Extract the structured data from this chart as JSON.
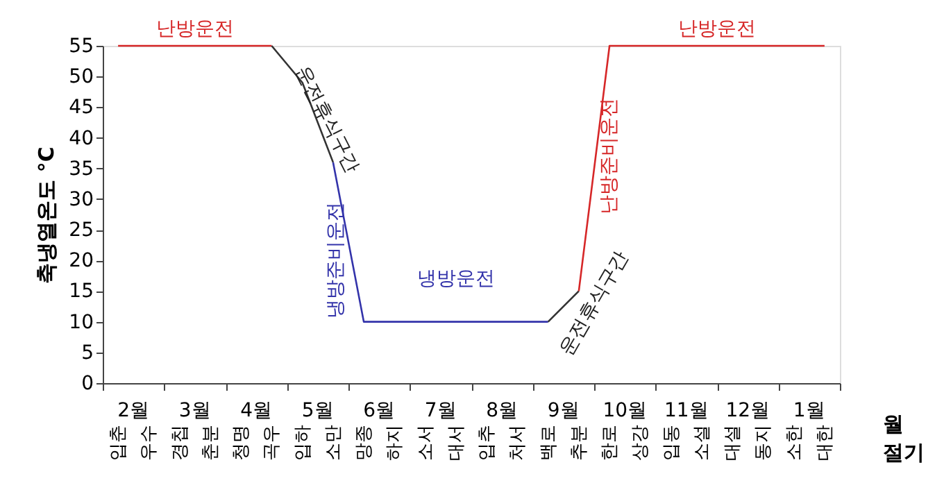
{
  "chart_data": {
    "type": "line",
    "ylabel": "축냉열온도 °C",
    "xlabel": "월",
    "ylim": [
      0,
      55
    ],
    "yticks": [
      0,
      5,
      10,
      15,
      20,
      25,
      30,
      35,
      40,
      45,
      50,
      55
    ],
    "categories": [
      "입춘",
      "우수",
      "경칩",
      "춘분",
      "청명",
      "곡우",
      "입하",
      "소만",
      "망종",
      "하지",
      "소서",
      "대서",
      "입추",
      "처서",
      "백로",
      "추분",
      "한로",
      "상강",
      "입동",
      "소설",
      "대설",
      "동지",
      "소한",
      "대한"
    ],
    "grid": false,
    "marker": "none",
    "line_style": "solid",
    "series": [
      {
        "color": "#d62728",
        "values": [
          55,
          55,
          55,
          55,
          55,
          55,
          null,
          null,
          null,
          null,
          null,
          null,
          null,
          null,
          null,
          null,
          null,
          null,
          null,
          null,
          null,
          null,
          null,
          null
        ]
      },
      {
        "color": "#333333",
        "values": [
          null,
          null,
          null,
          null,
          null,
          55,
          49,
          36,
          null,
          null,
          null,
          null,
          null,
          null,
          null,
          null,
          null,
          null,
          null,
          null,
          null,
          null,
          null,
          null
        ]
      },
      {
        "color": "#3333aa",
        "values": [
          null,
          null,
          null,
          null,
          null,
          null,
          null,
          36,
          10,
          10,
          10,
          10,
          10,
          10,
          10,
          null,
          null,
          null,
          null,
          null,
          null,
          null,
          null,
          null
        ]
      },
      {
        "color": "#333333",
        "values": [
          null,
          null,
          null,
          null,
          null,
          null,
          null,
          null,
          null,
          null,
          null,
          null,
          null,
          null,
          10,
          15,
          null,
          null,
          null,
          null,
          null,
          null,
          null,
          null
        ]
      },
      {
        "color": "#d62728",
        "values": [
          null,
          null,
          null,
          null,
          null,
          null,
          null,
          null,
          null,
          null,
          null,
          null,
          null,
          null,
          null,
          15,
          55,
          55,
          55,
          55,
          55,
          55,
          55,
          55
        ]
      }
    ],
    "annotations": [
      "난방운전",
      "운전휴식구간",
      "냉방준비운전",
      "냉방운전",
      "운전휴식구간",
      "난방준비운전",
      "난방운전",
      "2월",
      "3월",
      "4월",
      "5월",
      "6월",
      "7월",
      "8월",
      "9월",
      "10월",
      "11월",
      "12월",
      "1월",
      "절기"
    ]
  }
}
